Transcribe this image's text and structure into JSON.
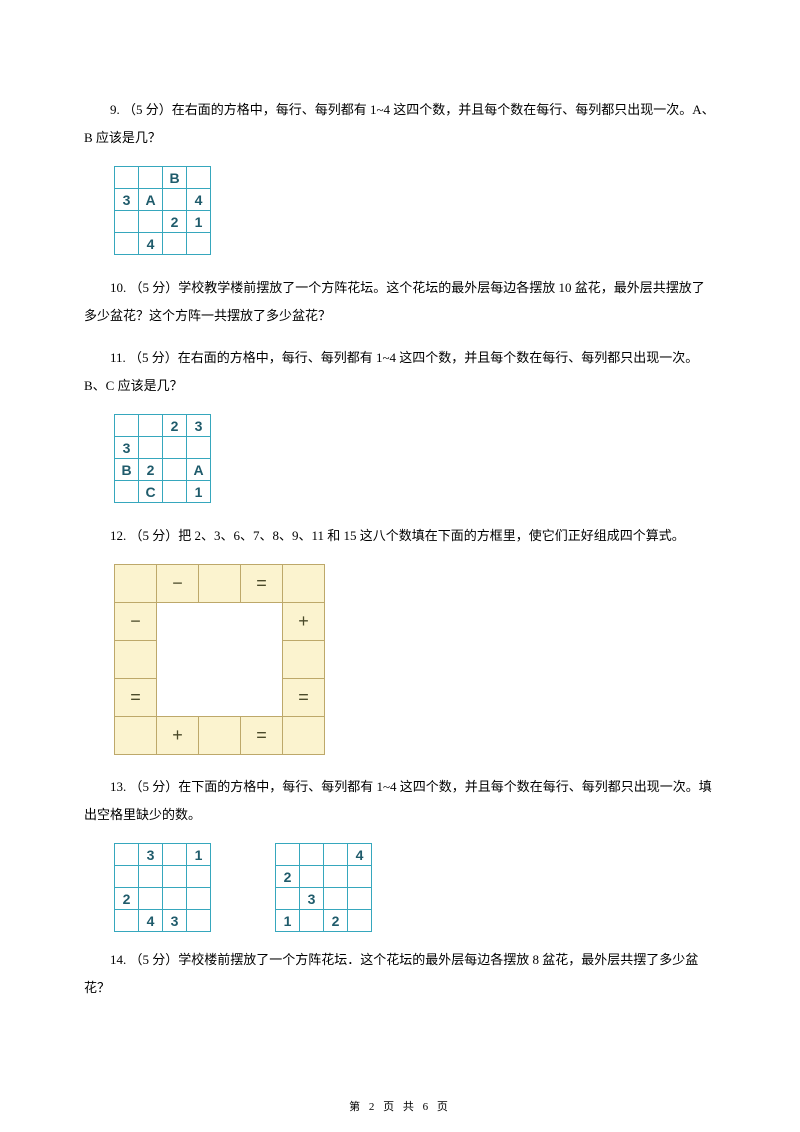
{
  "q9": {
    "text": "9. （5 分）在右面的方格中，每行、每列都有 1~4 这四个数，并且每个数在每行、每列都只出现一次。A、B 应该是几？",
    "grid": [
      [
        "",
        "",
        "B",
        ""
      ],
      [
        "3",
        "A",
        "",
        "4"
      ],
      [
        "",
        "",
        "2",
        "1"
      ],
      [
        "",
        "4",
        "",
        ""
      ]
    ]
  },
  "q10": {
    "text": "10. （5 分）学校教学楼前摆放了一个方阵花坛。这个花坛的最外层每边各摆放 10 盆花，最外层共摆放了多少盆花？这个方阵一共摆放了多少盆花？"
  },
  "q11": {
    "text": "11. （5 分）在右面的方格中，每行、每列都有 1~4 这四个数，并且每个数在每行、每列都只出现一次。B、C 应该是几？",
    "grid": [
      [
        "",
        "",
        "2",
        "3"
      ],
      [
        "3",
        "",
        "",
        ""
      ],
      [
        "B",
        "2",
        "",
        "A"
      ],
      [
        "",
        "C",
        "",
        "1"
      ]
    ]
  },
  "q12": {
    "text": "12. （5 分）把 2、3、6、7、8、9、11 和 15 这八个数填在下面的方框里，使它们正好组成四个算式。",
    "ops": {
      "top_minus": "−",
      "top_eq": "=",
      "left_minus": "−",
      "right_plus": "+",
      "left_eq": "=",
      "right_eq": "=",
      "bot_plus": "+",
      "bot_eq": "="
    }
  },
  "q13": {
    "text": "13. （5 分）在下面的方格中，每行、每列都有 1~4 这四个数，并且每个数在每行、每列都只出现一次。填出空格里缺少的数。",
    "grid_a": [
      [
        "",
        "3",
        "",
        "1"
      ],
      [
        "",
        "",
        "",
        ""
      ],
      [
        "2",
        "",
        "",
        ""
      ],
      [
        "",
        "4",
        "3",
        ""
      ]
    ],
    "grid_b": [
      [
        "",
        "",
        "",
        "4"
      ],
      [
        "2",
        "",
        "",
        ""
      ],
      [
        "",
        "3",
        "",
        ""
      ],
      [
        "1",
        "",
        "2",
        ""
      ]
    ]
  },
  "q14": {
    "text": "14. （5 分）学校楼前摆放了一个方阵花坛．这个花坛的最外层每边各摆放 8 盆花，最外层共摆了多少盆花？"
  },
  "footer": "第 2 页 共 6 页"
}
